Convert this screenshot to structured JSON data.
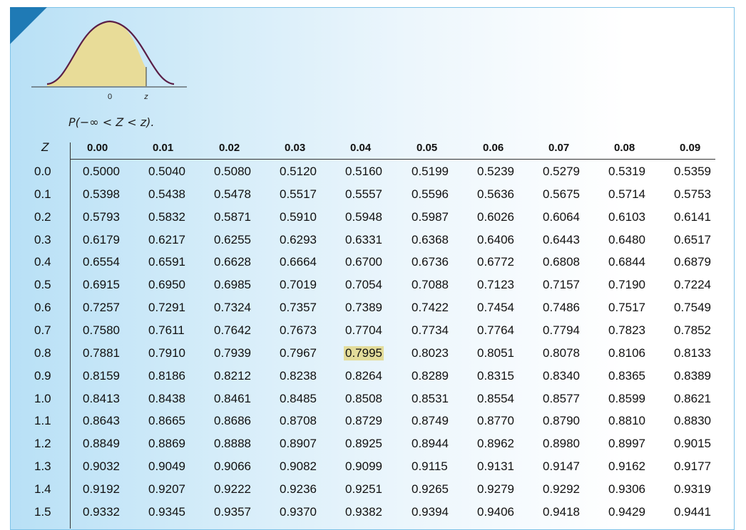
{
  "diagram": {
    "axis_zero_label": "0",
    "axis_z_label": "z",
    "curve_fill_color": "#e8dc98",
    "curve_stroke_color": "#5a1e46"
  },
  "probability_label": {
    "prefix": "P(",
    "minus_inf": "−∞",
    "lt1": " < ",
    "Z": "Z",
    "lt2": " < ",
    "z": "z",
    "suffix": ")."
  },
  "table": {
    "z_header": "Z",
    "columns": [
      "0.00",
      "0.01",
      "0.02",
      "0.03",
      "0.04",
      "0.05",
      "0.06",
      "0.07",
      "0.08",
      "0.09"
    ],
    "highlight": {
      "row": 8,
      "col": 4,
      "color": "#e3dc9a"
    },
    "rows": [
      {
        "z": "0.0",
        "values": [
          "0.5000",
          "0.5040",
          "0.5080",
          "0.5120",
          "0.5160",
          "0.5199",
          "0.5239",
          "0.5279",
          "0.5319",
          "0.5359"
        ]
      },
      {
        "z": "0.1",
        "values": [
          "0.5398",
          "0.5438",
          "0.5478",
          "0.5517",
          "0.5557",
          "0.5596",
          "0.5636",
          "0.5675",
          "0.5714",
          "0.5753"
        ]
      },
      {
        "z": "0.2",
        "values": [
          "0.5793",
          "0.5832",
          "0.5871",
          "0.5910",
          "0.5948",
          "0.5987",
          "0.6026",
          "0.6064",
          "0.6103",
          "0.6141"
        ]
      },
      {
        "z": "0.3",
        "values": [
          "0.6179",
          "0.6217",
          "0.6255",
          "0.6293",
          "0.6331",
          "0.6368",
          "0.6406",
          "0.6443",
          "0.6480",
          "0.6517"
        ]
      },
      {
        "z": "0.4",
        "values": [
          "0.6554",
          "0.6591",
          "0.6628",
          "0.6664",
          "0.6700",
          "0.6736",
          "0.6772",
          "0.6808",
          "0.6844",
          "0.6879"
        ]
      },
      {
        "z": "0.5",
        "values": [
          "0.6915",
          "0.6950",
          "0.6985",
          "0.7019",
          "0.7054",
          "0.7088",
          "0.7123",
          "0.7157",
          "0.7190",
          "0.7224"
        ]
      },
      {
        "z": "0.6",
        "values": [
          "0.7257",
          "0.7291",
          "0.7324",
          "0.7357",
          "0.7389",
          "0.7422",
          "0.7454",
          "0.7486",
          "0.7517",
          "0.7549"
        ]
      },
      {
        "z": "0.7",
        "values": [
          "0.7580",
          "0.7611",
          "0.7642",
          "0.7673",
          "0.7704",
          "0.7734",
          "0.7764",
          "0.7794",
          "0.7823",
          "0.7852"
        ]
      },
      {
        "z": "0.8",
        "values": [
          "0.7881",
          "0.7910",
          "0.7939",
          "0.7967",
          "0.7995",
          "0.8023",
          "0.8051",
          "0.8078",
          "0.8106",
          "0.8133"
        ]
      },
      {
        "z": "0.9",
        "values": [
          "0.8159",
          "0.8186",
          "0.8212",
          "0.8238",
          "0.8264",
          "0.8289",
          "0.8315",
          "0.8340",
          "0.8365",
          "0.8389"
        ]
      },
      {
        "z": "1.0",
        "values": [
          "0.8413",
          "0.8438",
          "0.8461",
          "0.8485",
          "0.8508",
          "0.8531",
          "0.8554",
          "0.8577",
          "0.8599",
          "0.8621"
        ]
      },
      {
        "z": "1.1",
        "values": [
          "0.8643",
          "0.8665",
          "0.8686",
          "0.8708",
          "0.8729",
          "0.8749",
          "0.8770",
          "0.8790",
          "0.8810",
          "0.8830"
        ]
      },
      {
        "z": "1.2",
        "values": [
          "0.8849",
          "0.8869",
          "0.8888",
          "0.8907",
          "0.8925",
          "0.8944",
          "0.8962",
          "0.8980",
          "0.8997",
          "0.9015"
        ]
      },
      {
        "z": "1.3",
        "values": [
          "0.9032",
          "0.9049",
          "0.9066",
          "0.9082",
          "0.9099",
          "0.9115",
          "0.9131",
          "0.9147",
          "0.9162",
          "0.9177"
        ]
      },
      {
        "z": "1.4",
        "values": [
          "0.9192",
          "0.9207",
          "0.9222",
          "0.9236",
          "0.9251",
          "0.9265",
          "0.9279",
          "0.9292",
          "0.9306",
          "0.9319"
        ]
      },
      {
        "z": "1.5",
        "values": [
          "0.9332",
          "0.9345",
          "0.9357",
          "0.9370",
          "0.9382",
          "0.9394",
          "0.9406",
          "0.9418",
          "0.9429",
          "0.9441"
        ]
      }
    ]
  }
}
